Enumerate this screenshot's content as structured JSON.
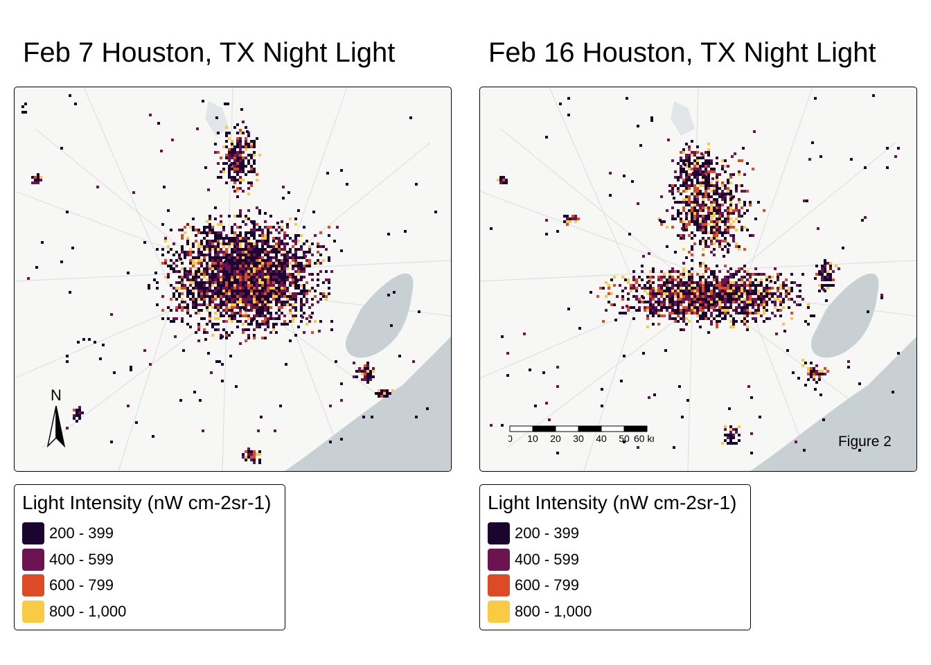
{
  "maps": [
    {
      "title": "Feb 7 Houston, TX Night Light",
      "date": "Feb 7"
    },
    {
      "title": "Feb 16 Houston, TX Night Light",
      "date": "Feb 16"
    }
  ],
  "legend": {
    "title": "Light Intensity (nW cm-2sr-1)",
    "items": [
      {
        "label": "200 - 399",
        "color": "#1a0530"
      },
      {
        "label": "400 - 599",
        "color": "#6e1352"
      },
      {
        "label": "600 - 799",
        "color": "#dc4a26"
      },
      {
        "label": "800 - 1,000",
        "color": "#f8cb42"
      }
    ]
  },
  "north_arrow": {
    "label": "N"
  },
  "scale_bar": {
    "ticks": [
      "0",
      "10",
      "20",
      "30",
      "40",
      "50",
      "60"
    ],
    "unit": "km"
  },
  "figure_label": "Figure 2",
  "colors": {
    "land": "#f7f7f5",
    "water": "#c9d0d4",
    "roads": "#dde0e2"
  }
}
